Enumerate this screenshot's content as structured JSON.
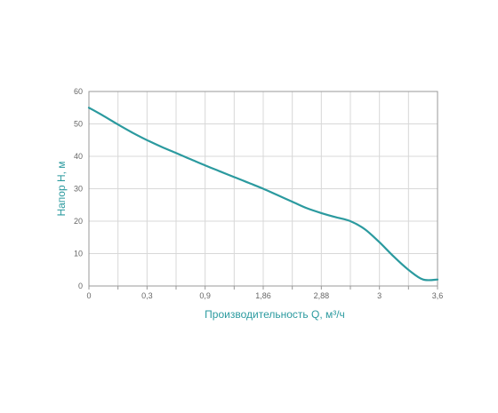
{
  "chart_data": {
    "type": "line",
    "xlabel": "Производительность Q, м³/ч",
    "ylabel": "Напор Н, м",
    "x_tick_labels": [
      "0",
      "0,3",
      "0,9",
      "1,86",
      "2,88",
      "3",
      "3,6"
    ],
    "y_ticks": [
      0,
      10,
      20,
      30,
      40,
      50,
      60
    ],
    "ylim": [
      0,
      60
    ],
    "grid": true,
    "colors": {
      "line": "#2b9a9f",
      "axis_text": "#2b9a9f",
      "grid": "#d8d8d8",
      "frame": "#999999",
      "tick": "#666666"
    },
    "series": [
      {
        "x_position": [
          0,
          0.25,
          0.5,
          0.75,
          1,
          1.25,
          1.5,
          1.75,
          2,
          2.25,
          2.5,
          2.75,
          3,
          3.25,
          3.5,
          3.75,
          4,
          4.25,
          4.5,
          4.75,
          5,
          5.25,
          5.5,
          5.75,
          6
        ],
        "values": [
          55,
          52.5,
          49.8,
          47.3,
          45,
          42.9,
          41,
          39.1,
          37.2,
          35.4,
          33.6,
          31.8,
          30,
          28,
          26,
          24,
          22.5,
          21.2,
          20,
          17.5,
          13.5,
          9,
          5,
          2,
          2
        ]
      }
    ]
  }
}
